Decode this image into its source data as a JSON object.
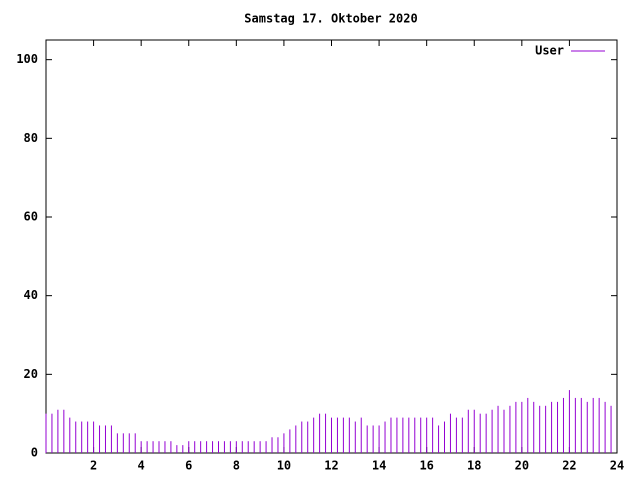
{
  "chart_data": {
    "type": "impulse",
    "title": "Samstag 17. Oktober 2020",
    "xlim": [
      0,
      24
    ],
    "xticks": [
      2,
      4,
      6,
      8,
      10,
      12,
      14,
      16,
      18,
      20,
      22,
      24
    ],
    "ylim": [
      0,
      105
    ],
    "yticks": [
      0,
      20,
      40,
      60,
      80,
      100
    ],
    "legend": "top-right",
    "x": [
      0,
      0.25,
      0.5,
      0.75,
      1,
      1.25,
      1.5,
      1.75,
      2,
      2.25,
      2.5,
      2.75,
      3,
      3.25,
      3.5,
      3.75,
      4,
      4.25,
      4.5,
      4.75,
      5,
      5.25,
      5.5,
      5.75,
      6,
      6.25,
      6.5,
      6.75,
      7,
      7.25,
      7.5,
      7.75,
      8,
      8.25,
      8.5,
      8.75,
      9,
      9.25,
      9.5,
      9.75,
      10,
      10.25,
      10.5,
      10.75,
      11,
      11.25,
      11.5,
      11.75,
      12,
      12.25,
      12.5,
      12.75,
      13,
      13.25,
      13.5,
      13.75,
      14,
      14.25,
      14.5,
      14.75,
      15,
      15.25,
      15.5,
      15.75,
      16,
      16.25,
      16.5,
      16.75,
      17,
      17.25,
      17.5,
      17.75,
      18,
      18.25,
      18.5,
      18.75,
      19,
      19.25,
      19.5,
      19.75,
      20,
      20.25,
      20.5,
      20.75,
      21,
      21.25,
      21.5,
      21.75,
      22,
      22.25,
      22.5,
      22.75,
      23,
      23.25,
      23.5,
      23.75
    ],
    "series": [
      {
        "name": "User",
        "color": "#9400d3",
        "values": [
          10,
          10,
          11,
          11,
          9,
          8,
          8,
          8,
          8,
          7,
          7,
          7,
          5,
          5,
          5,
          5,
          3,
          3,
          3,
          3,
          3,
          3,
          2,
          2,
          3,
          3,
          3,
          3,
          3,
          3,
          3,
          3,
          3,
          3,
          3,
          3,
          3,
          3,
          4,
          4,
          5,
          6,
          7,
          8,
          8,
          9,
          10,
          10,
          9,
          9,
          9,
          9,
          8,
          9,
          7,
          7,
          7,
          8,
          9,
          9,
          9,
          9,
          9,
          9,
          9,
          9,
          7,
          8,
          10,
          9,
          9,
          11,
          11,
          10,
          10,
          11,
          12,
          11,
          12,
          13,
          13,
          14,
          13,
          12,
          12,
          13,
          13,
          14,
          16,
          14,
          14,
          13,
          14,
          14,
          13,
          12
        ]
      }
    ]
  }
}
